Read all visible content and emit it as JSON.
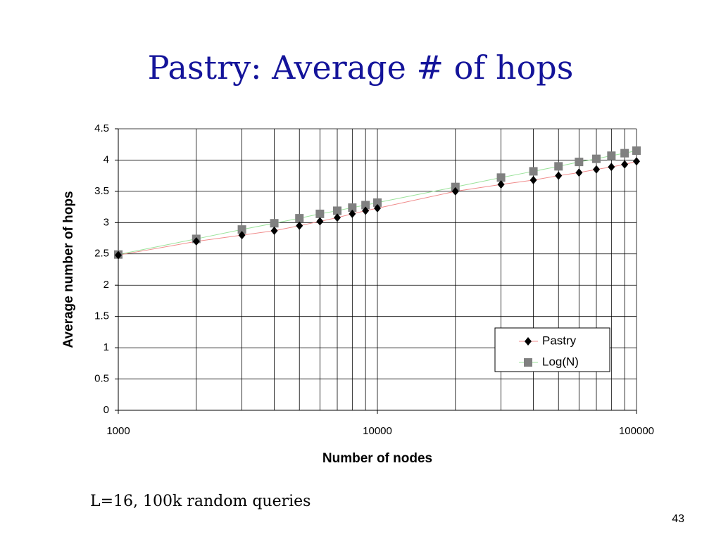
{
  "chart_data": {
    "type": "line",
    "title": "Pastry: Average # of hops",
    "x_label": "Number of nodes",
    "y_label": "Average number of hops",
    "x": [
      1000,
      2000,
      3000,
      4000,
      5000,
      6000,
      7000,
      8000,
      9000,
      10000,
      20000,
      30000,
      40000,
      50000,
      60000,
      70000,
      80000,
      90000,
      100000
    ],
    "series": [
      {
        "name": "Pastry",
        "color": "#000000",
        "line_color": "#f08c8c",
        "marker": "diamond",
        "values": [
          2.48,
          2.7,
          2.8,
          2.87,
          2.95,
          3.02,
          3.08,
          3.14,
          3.19,
          3.23,
          3.5,
          3.61,
          3.68,
          3.75,
          3.8,
          3.85,
          3.89,
          3.93,
          3.98
        ]
      },
      {
        "name": "Log(N)",
        "color": "#808080",
        "line_color": "#9be39b",
        "marker": "square",
        "values": [
          2.49,
          2.74,
          2.89,
          2.99,
          3.07,
          3.14,
          3.19,
          3.24,
          3.28,
          3.32,
          3.57,
          3.72,
          3.82,
          3.9,
          3.97,
          4.02,
          4.07,
          4.11,
          4.15
        ]
      }
    ],
    "xscale": "log",
    "xlim": [
      1000,
      100000
    ],
    "xticks": [
      1000,
      10000,
      100000
    ],
    "ylim": [
      0,
      4.5
    ],
    "yticks": [
      0,
      0.5,
      1,
      1.5,
      2,
      2.5,
      3,
      3.5,
      4,
      4.5
    ],
    "grid": true,
    "minor_grid": true,
    "legend": "lower right",
    "note": "L=16, 100k random queries",
    "page_number": "43"
  }
}
